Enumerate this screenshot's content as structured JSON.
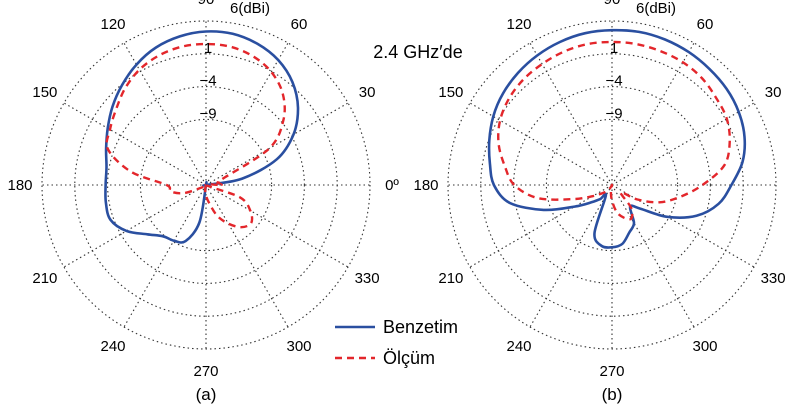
{
  "annotation": "2.4 GHz′de",
  "legend": {
    "simulated_label": "Benzetim",
    "measured_label": "Ölçüm",
    "simulated_color": "#2a4fa0",
    "measured_color": "#e3262b"
  },
  "chart_data": [
    {
      "type": "polar",
      "caption": "(a)",
      "angle_unit": "degrees",
      "angle_ticks": [
        "0º",
        "30",
        "60",
        "90",
        "120",
        "150",
        "180",
        "210",
        "240",
        "270",
        "300",
        "330"
      ],
      "radial_ticks": [
        "6(dBi)",
        "1",
        "−4",
        "−9"
      ],
      "radial_range_dBi": [
        -19,
        6
      ],
      "grid": true,
      "legend_position": "bottom-center",
      "series": [
        {
          "name": "Benzetim",
          "angles": [
            0,
            10,
            20,
            30,
            40,
            50,
            60,
            70,
            80,
            90,
            100,
            110,
            120,
            130,
            140,
            150,
            160,
            170,
            180,
            190,
            200,
            210,
            220,
            230,
            240,
            250,
            260,
            270,
            280,
            290,
            300,
            310,
            320,
            330,
            340,
            350
          ],
          "values": [
            -19,
            -13.4,
            -7.5,
            -3.6,
            -0.7,
            1.5,
            3.0,
            3.9,
            4.4,
            4.4,
            4.0,
            3.3,
            2.2,
            0.9,
            -0.4,
            -1.7,
            -2.8,
            -3.6,
            -3.7,
            -3.5,
            -3.5,
            -5.0,
            -7.3,
            -8.8,
            -9.2,
            -9.9,
            -13.2,
            -19,
            -19,
            -19,
            -19,
            -19,
            -19,
            -19,
            -19,
            -19
          ]
        },
        {
          "name": "Ölçüm",
          "angles": [
            0,
            10,
            20,
            30,
            40,
            50,
            60,
            70,
            80,
            90,
            100,
            110,
            120,
            130,
            140,
            150,
            160,
            170,
            180,
            190,
            200,
            210,
            220,
            230,
            240,
            250,
            260,
            270,
            280,
            290,
            300,
            310,
            320,
            330,
            340,
            350
          ],
          "values": [
            -16.7,
            -17.0,
            -16.4,
            -7.9,
            -3.6,
            -0.8,
            0.9,
            1.9,
            2.4,
            2.5,
            2.4,
            2.0,
            1.3,
            0.2,
            -1.1,
            -2.1,
            -3.1,
            -7.4,
            -13.0,
            -13.5,
            -15.4,
            -18.2,
            -19,
            -19,
            -19,
            -19,
            -18.3,
            -17.4,
            -16.2,
            -14.0,
            -12.2,
            -10.6,
            -10.0,
            -11.2,
            -13.5,
            -19
          ]
        }
      ]
    },
    {
      "type": "polar",
      "caption": "(b)",
      "angle_unit": "degrees",
      "angle_ticks": [
        "0º",
        "30",
        "60",
        "90",
        "120",
        "150",
        "180",
        "210",
        "240",
        "270",
        "300",
        "330"
      ],
      "radial_ticks": [
        "6(dBi)",
        "1",
        "−4",
        "−9"
      ],
      "radial_range_dBi": [
        -19,
        6
      ],
      "grid": true,
      "legend_position": "bottom-center",
      "series": [
        {
          "name": "Benzetim",
          "angles": [
            0,
            10,
            20,
            30,
            40,
            50,
            60,
            70,
            80,
            90,
            100,
            110,
            120,
            130,
            140,
            150,
            160,
            170,
            180,
            190,
            200,
            210,
            220,
            230,
            240,
            250,
            260,
            270,
            280,
            290,
            300,
            310,
            320,
            330,
            340,
            350
          ],
          "values": [
            -0.8,
            1.2,
            2.5,
            3.3,
            3.8,
            4.1,
            4.4,
            4.6,
            4.7,
            4.6,
            4.5,
            4.2,
            3.8,
            3.3,
            2.7,
            1.9,
            0.9,
            -0.1,
            -1.0,
            -3.2,
            -7.9,
            -12.4,
            -14.9,
            -16.2,
            -17.1,
            -11.2,
            -9.6,
            -9.5,
            -9.9,
            -11.3,
            -12.3,
            -14.7,
            -13.4,
            -9.3,
            -5.3,
            -2.5
          ]
        },
        {
          "name": "Ölçüm",
          "angles": [
            0,
            10,
            20,
            30,
            40,
            50,
            60,
            70,
            80,
            90,
            100,
            110,
            120,
            130,
            140,
            150,
            160,
            170,
            180,
            190,
            200,
            210,
            220,
            230,
            240,
            250,
            260,
            270,
            280,
            290,
            300,
            310,
            320,
            330,
            340,
            350
          ],
          "values": [
            -5.2,
            -1.6,
            0.1,
            1.2,
            1.7,
            2.3,
            2.6,
            2.7,
            2.8,
            2.8,
            2.8,
            2.6,
            2.3,
            2.0,
            1.5,
            0.7,
            -0.6,
            -2.4,
            -4.1,
            -7.5,
            -12.7,
            -15.6,
            -17.0,
            -17.8,
            -18.5,
            -19,
            -18.0,
            -16.6,
            -14.8,
            -13.7,
            -13.1,
            -14.5,
            -17.3,
            -14.6,
            -11.3,
            -8.5
          ]
        }
      ]
    }
  ]
}
